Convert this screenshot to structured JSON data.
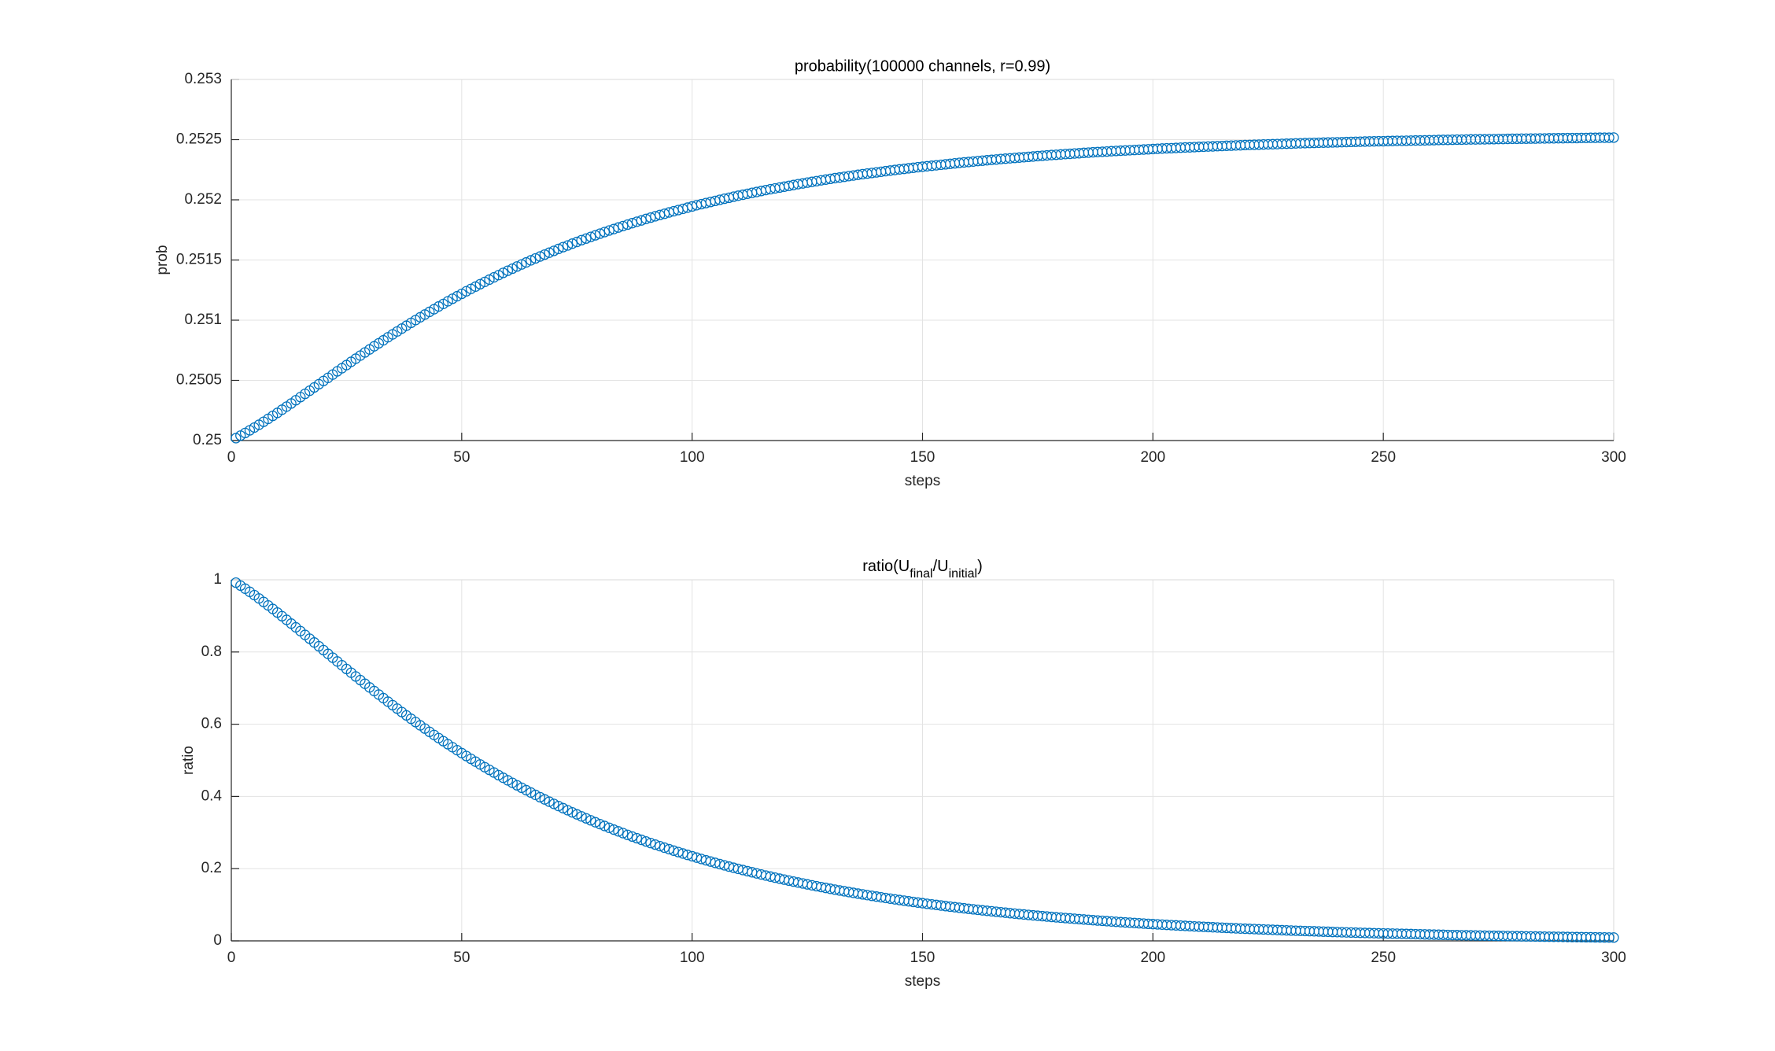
{
  "chart_data": [
    {
      "type": "scatter",
      "title": "probability(100000 channels, r=0.99)",
      "xlabel": "steps",
      "ylabel": "prob",
      "color": "#0072bd",
      "grid": true,
      "xlim": [
        0,
        300
      ],
      "xticks": [
        0,
        50,
        100,
        150,
        200,
        250,
        300
      ],
      "ylim": [
        0.25,
        0.253
      ],
      "yticks": [
        0.25,
        0.2505,
        0.251,
        0.2515,
        0.252,
        0.2525,
        0.253
      ],
      "x": [
        1,
        2,
        3,
        4,
        5,
        6,
        7,
        8,
        9,
        10,
        11,
        12,
        13,
        14,
        15,
        16,
        17,
        18,
        19,
        20,
        21,
        22,
        23,
        24,
        25,
        26,
        27,
        28,
        29,
        30,
        31,
        32,
        33,
        34,
        35,
        36,
        37,
        38,
        39,
        40,
        41,
        42,
        43,
        44,
        45,
        46,
        47,
        48,
        49,
        50,
        51,
        52,
        53,
        54,
        55,
        56,
        57,
        58,
        59,
        60,
        61,
        62,
        63,
        64,
        65,
        66,
        67,
        68,
        69,
        70,
        71,
        72,
        73,
        74,
        75,
        76,
        77,
        78,
        79,
        80,
        81,
        82,
        83,
        84,
        85,
        86,
        87,
        88,
        89,
        90,
        91,
        92,
        93,
        94,
        95,
        96,
        97,
        98,
        99,
        100,
        101,
        102,
        103,
        104,
        105,
        106,
        107,
        108,
        109,
        110,
        111,
        112,
        113,
        114,
        115,
        116,
        117,
        118,
        119,
        120,
        121,
        122,
        123,
        124,
        125,
        126,
        127,
        128,
        129,
        130,
        131,
        132,
        133,
        134,
        135,
        136,
        137,
        138,
        139,
        140,
        141,
        142,
        143,
        144,
        145,
        146,
        147,
        148,
        149,
        150,
        151,
        152,
        153,
        154,
        155,
        156,
        157,
        158,
        159,
        160,
        161,
        162,
        163,
        164,
        165,
        166,
        167,
        168,
        169,
        170,
        171,
        172,
        173,
        174,
        175,
        176,
        177,
        178,
        179,
        180,
        181,
        182,
        183,
        184,
        185,
        186,
        187,
        188,
        189,
        190,
        191,
        192,
        193,
        194,
        195,
        196,
        197,
        198,
        199,
        200,
        201,
        202,
        203,
        204,
        205,
        206,
        207,
        208,
        209,
        210,
        211,
        212,
        213,
        214,
        215,
        216,
        217,
        218,
        219,
        220,
        221,
        222,
        223,
        224,
        225,
        226,
        227,
        228,
        229,
        230,
        231,
        232,
        233,
        234,
        235,
        236,
        237,
        238,
        239,
        240,
        241,
        242,
        243,
        244,
        245,
        246,
        247,
        248,
        249,
        250,
        251,
        252,
        253,
        254,
        255,
        256,
        257,
        258,
        259,
        260,
        261,
        262,
        263,
        264,
        265,
        266,
        267,
        268,
        269,
        270,
        271,
        272,
        273,
        274,
        275,
        276,
        277,
        278,
        279,
        280,
        281,
        282,
        283,
        284,
        285,
        286,
        287,
        288,
        289,
        290,
        291,
        292,
        293,
        294,
        295,
        296,
        297,
        298,
        299,
        300
      ],
      "values": [
        0.25002,
        0.250041,
        0.250063,
        0.250085,
        0.250108,
        0.250131,
        0.250156,
        0.25018,
        0.250205,
        0.25023,
        0.250256,
        0.250282,
        0.250308,
        0.250335,
        0.250361,
        0.250388,
        0.250414,
        0.250441,
        0.250468,
        0.250495,
        0.250521,
        0.250548,
        0.250575,
        0.250601,
        0.250627,
        0.250654,
        0.25068,
        0.250706,
        0.250732,
        0.250757,
        0.250783,
        0.250808,
        0.250833,
        0.250858,
        0.250882,
        0.250906,
        0.25093,
        0.250954,
        0.250978,
        0.251001,
        0.251024,
        0.251047,
        0.251069,
        0.251091,
        0.251114,
        0.251135,
        0.251157,
        0.251178,
        0.251199,
        0.251219,
        0.25124,
        0.25126,
        0.251279,
        0.251299,
        0.251318,
        0.251337,
        0.251356,
        0.251374,
        0.251393,
        0.251411,
        0.251428,
        0.251446,
        0.251463,
        0.25148,
        0.251497,
        0.251513,
        0.251529,
        0.251545,
        0.251561,
        0.251576,
        0.251592,
        0.251607,
        0.251621,
        0.251636,
        0.25165,
        0.251665,
        0.251678,
        0.251692,
        0.251705,
        0.251719,
        0.251732,
        0.251745,
        0.251757,
        0.25177,
        0.251782,
        0.251794,
        0.251806,
        0.251818,
        0.251829,
        0.251841,
        0.251852,
        0.251863,
        0.251874,
        0.251884,
        0.251895,
        0.251905,
        0.251915,
        0.251925,
        0.251935,
        0.251945,
        0.251955,
        0.251964,
        0.251973,
        0.251982,
        0.251991,
        0.252,
        0.252009,
        0.252017,
        0.252026,
        0.252034,
        0.252042,
        0.25205,
        0.252058,
        0.252065,
        0.252073,
        0.252081,
        0.252088,
        0.252095,
        0.252102,
        0.252109,
        0.252116,
        0.252123,
        0.25213,
        0.252136,
        0.252143,
        0.252149,
        0.252155,
        0.252162,
        0.252168,
        0.252174,
        0.25218,
        0.252185,
        0.252191,
        0.252197,
        0.252202,
        0.252208,
        0.252213,
        0.252218,
        0.252223,
        0.252228,
        0.252233,
        0.252238,
        0.252243,
        0.252248,
        0.252253,
        0.252257,
        0.252262,
        0.252266,
        0.252271,
        0.252275,
        0.252279,
        0.252283,
        0.252287,
        0.252291,
        0.252295,
        0.252299,
        0.252303,
        0.252307,
        0.252311,
        0.252314,
        0.252318,
        0.252322,
        0.252325,
        0.252329,
        0.252332,
        0.252335,
        0.252339,
        0.252342,
        0.252345,
        0.252348,
        0.252351,
        0.252354,
        0.252357,
        0.25236,
        0.252363,
        0.252366,
        0.252369,
        0.252372,
        0.252374,
        0.252377,
        0.25238,
        0.252382,
        0.252385,
        0.252387,
        0.25239,
        0.252392,
        0.252395,
        0.252397,
        0.252399,
        0.252401,
        0.252404,
        0.252406,
        0.252408,
        0.25241,
        0.252412,
        0.252414,
        0.252416,
        0.252418,
        0.25242,
        0.252422,
        0.252424,
        0.252426,
        0.252428,
        0.252429,
        0.252431,
        0.252433,
        0.252435,
        0.252436,
        0.252438,
        0.25244,
        0.252441,
        0.252443,
        0.252444,
        0.252446,
        0.252447,
        0.252449,
        0.25245,
        0.252452,
        0.252453,
        0.252455,
        0.252456,
        0.252457,
        0.252458,
        0.25246,
        0.252461,
        0.252462,
        0.252463,
        0.252465,
        0.252466,
        0.252467,
        0.252469,
        0.25247,
        0.252471,
        0.252472,
        0.252473,
        0.252474,
        0.252475,
        0.252476,
        0.252477,
        0.252478,
        0.252479,
        0.25248,
        0.252481,
        0.252482,
        0.252483,
        0.252484,
        0.252485,
        0.252486,
        0.252487,
        0.252487,
        0.252488,
        0.252489,
        0.25249,
        0.25249,
        0.252491,
        0.252492,
        0.252493,
        0.252493,
        0.252494,
        0.252495,
        0.252496,
        0.252497,
        0.252498,
        0.252498,
        0.252499,
        0.2525,
        0.2525,
        0.252501,
        0.252502,
        0.252502,
        0.252503,
        0.252503,
        0.252504,
        0.252504,
        0.252505,
        0.252505,
        0.252506,
        0.252507,
        0.252507,
        0.252508,
        0.252508,
        0.252509,
        0.252509,
        0.25251,
        0.25251,
        0.252511,
        0.252511,
        0.252512,
        0.252512,
        0.252513,
        0.252513,
        0.252513,
        0.252514,
        0.252514,
        0.252515,
        0.252515,
        0.252516,
        0.252516,
        0.252516,
        0.252517
      ]
    },
    {
      "type": "scatter",
      "title": [
        {
          "text": "ratio(U"
        },
        {
          "text": "final",
          "sub": true
        },
        {
          "text": "/U"
        },
        {
          "text": "initial",
          "sub": true
        },
        {
          "text": ")"
        }
      ],
      "xlabel": "steps",
      "ylabel": "ratio",
      "color": "#0072bd",
      "grid": true,
      "xlim": [
        0,
        300
      ],
      "xticks": [
        0,
        50,
        100,
        150,
        200,
        250,
        300
      ],
      "ylim": [
        0,
        1
      ],
      "yticks": [
        0,
        0.2,
        0.4,
        0.6,
        0.8,
        1
      ],
      "x": [
        1,
        2,
        3,
        4,
        5,
        6,
        7,
        8,
        9,
        10,
        11,
        12,
        13,
        14,
        15,
        16,
        17,
        18,
        19,
        20,
        21,
        22,
        23,
        24,
        25,
        26,
        27,
        28,
        29,
        30,
        31,
        32,
        33,
        34,
        35,
        36,
        37,
        38,
        39,
        40,
        41,
        42,
        43,
        44,
        45,
        46,
        47,
        48,
        49,
        50,
        51,
        52,
        53,
        54,
        55,
        56,
        57,
        58,
        59,
        60,
        61,
        62,
        63,
        64,
        65,
        66,
        67,
        68,
        69,
        70,
        71,
        72,
        73,
        74,
        75,
        76,
        77,
        78,
        79,
        80,
        81,
        82,
        83,
        84,
        85,
        86,
        87,
        88,
        89,
        90,
        91,
        92,
        93,
        94,
        95,
        96,
        97,
        98,
        99,
        100,
        101,
        102,
        103,
        104,
        105,
        106,
        107,
        108,
        109,
        110,
        111,
        112,
        113,
        114,
        115,
        116,
        117,
        118,
        119,
        120,
        121,
        122,
        123,
        124,
        125,
        126,
        127,
        128,
        129,
        130,
        131,
        132,
        133,
        134,
        135,
        136,
        137,
        138,
        139,
        140,
        141,
        142,
        143,
        144,
        145,
        146,
        147,
        148,
        149,
        150,
        151,
        152,
        153,
        154,
        155,
        156,
        157,
        158,
        159,
        160,
        161,
        162,
        163,
        164,
        165,
        166,
        167,
        168,
        169,
        170,
        171,
        172,
        173,
        174,
        175,
        176,
        177,
        178,
        179,
        180,
        181,
        182,
        183,
        184,
        185,
        186,
        187,
        188,
        189,
        190,
        191,
        192,
        193,
        194,
        195,
        196,
        197,
        198,
        199,
        200,
        201,
        202,
        203,
        204,
        205,
        206,
        207,
        208,
        209,
        210,
        211,
        212,
        213,
        214,
        215,
        216,
        217,
        218,
        219,
        220,
        221,
        222,
        223,
        224,
        225,
        226,
        227,
        228,
        229,
        230,
        231,
        232,
        233,
        234,
        235,
        236,
        237,
        238,
        239,
        240,
        241,
        242,
        243,
        244,
        245,
        246,
        247,
        248,
        249,
        250,
        251,
        252,
        253,
        254,
        255,
        256,
        257,
        258,
        259,
        260,
        261,
        262,
        263,
        264,
        265,
        266,
        267,
        268,
        269,
        270,
        271,
        272,
        273,
        274,
        275,
        276,
        277,
        278,
        279,
        280,
        281,
        282,
        283,
        284,
        285,
        286,
        287,
        288,
        289,
        290,
        291,
        292,
        293,
        294,
        295,
        296,
        297,
        298,
        299,
        300
      ],
      "values": [
        0.9921,
        0.9839,
        0.9754,
        0.9666,
        0.9575,
        0.9483,
        0.9387,
        0.929,
        0.9193,
        0.9093,
        0.8992,
        0.889,
        0.8787,
        0.8683,
        0.8579,
        0.8474,
        0.8369,
        0.8264,
        0.8159,
        0.8053,
        0.7948,
        0.7843,
        0.7738,
        0.7634,
        0.753,
        0.7427,
        0.7323,
        0.7222,
        0.712,
        0.7019,
        0.6919,
        0.682,
        0.6722,
        0.6624,
        0.6528,
        0.6432,
        0.6337,
        0.6244,
        0.6151,
        0.6059,
        0.5968,
        0.5879,
        0.579,
        0.5703,
        0.5616,
        0.5531,
        0.5446,
        0.5363,
        0.5281,
        0.52,
        0.512,
        0.5041,
        0.4963,
        0.4886,
        0.481,
        0.4736,
        0.4662,
        0.4589,
        0.4517,
        0.4446,
        0.4377,
        0.4308,
        0.424,
        0.4174,
        0.4108,
        0.4043,
        0.3979,
        0.3917,
        0.3855,
        0.3794,
        0.3734,
        0.3675,
        0.3617,
        0.3559,
        0.3503,
        0.3447,
        0.3393,
        0.3339,
        0.3286,
        0.3233,
        0.3182,
        0.3131,
        0.3081,
        0.3032,
        0.2984,
        0.2936,
        0.2889,
        0.2843,
        0.2798,
        0.2753,
        0.2709,
        0.2666,
        0.2623,
        0.2581,
        0.254,
        0.2499,
        0.2459,
        0.242,
        0.2381,
        0.2343,
        0.2305,
        0.2268,
        0.2232,
        0.2196,
        0.2161,
        0.2126,
        0.2092,
        0.2058,
        0.2025,
        0.1994,
        0.1962,
        0.193,
        0.1899,
        0.1869,
        0.1839,
        0.1809,
        0.178,
        0.1751,
        0.1723,
        0.1696,
        0.1669,
        0.1642,
        0.1616,
        0.159,
        0.1564,
        0.1539,
        0.1514,
        0.149,
        0.1466,
        0.1442,
        0.1419,
        0.1396,
        0.1374,
        0.1352,
        0.133,
        0.1309,
        0.1288,
        0.1267,
        0.1247,
        0.1227,
        0.1207,
        0.1188,
        0.1169,
        0.115,
        0.1132,
        0.1114,
        0.1096,
        0.1078,
        0.1061,
        0.1044,
        0.1027,
        0.1011,
        0.0995,
        0.0979,
        0.0963,
        0.0948,
        0.0933,
        0.0918,
        0.0903,
        0.0888,
        0.0874,
        0.086,
        0.0846,
        0.0832,
        0.0819,
        0.0806,
        0.0793,
        0.078,
        0.0767,
        0.0755,
        0.0743,
        0.0731,
        0.0719,
        0.0707,
        0.0696,
        0.0685,
        0.0674,
        0.0663,
        0.0652,
        0.0642,
        0.0632,
        0.0622,
        0.0612,
        0.0602,
        0.0592,
        0.0582,
        0.0573,
        0.0564,
        0.0555,
        0.0546,
        0.0537,
        0.0528,
        0.0519,
        0.0511,
        0.0503,
        0.0495,
        0.0487,
        0.0479,
        0.0471,
        0.0464,
        0.0457,
        0.045,
        0.0443,
        0.0436,
        0.0429,
        0.0422,
        0.0415,
        0.0408,
        0.0401,
        0.0395,
        0.0389,
        0.0383,
        0.0377,
        0.0371,
        0.0365,
        0.0359,
        0.0353,
        0.0347,
        0.0341,
        0.0336,
        0.0331,
        0.0326,
        0.0321,
        0.0316,
        0.0311,
        0.0306,
        0.0301,
        0.0296,
        0.0291,
        0.0286,
        0.0281,
        0.0277,
        0.0273,
        0.0269,
        0.0265,
        0.0261,
        0.0256,
        0.0252,
        0.0247,
        0.0243,
        0.0239,
        0.0235,
        0.0231,
        0.0227,
        0.0223,
        0.0219,
        0.0216,
        0.0213,
        0.021,
        0.0207,
        0.0204,
        0.0201,
        0.0198,
        0.0195,
        0.0192,
        0.0189,
        0.0186,
        0.0183,
        0.018,
        0.0176,
        0.0173,
        0.017,
        0.0167,
        0.0164,
        0.0161,
        0.0159,
        0.0156,
        0.0154,
        0.0151,
        0.0149,
        0.0147,
        0.0145,
        0.0142,
        0.014,
        0.0138,
        0.0136,
        0.0133,
        0.0131,
        0.0129,
        0.0127,
        0.0125,
        0.0123,
        0.0121,
        0.0119,
        0.0117,
        0.0115,
        0.0113,
        0.0112,
        0.011,
        0.0108,
        0.0106,
        0.0105,
        0.0103,
        0.0101,
        0.01,
        0.0098,
        0.0096,
        0.0095,
        0.0093,
        0.0092
      ]
    }
  ]
}
